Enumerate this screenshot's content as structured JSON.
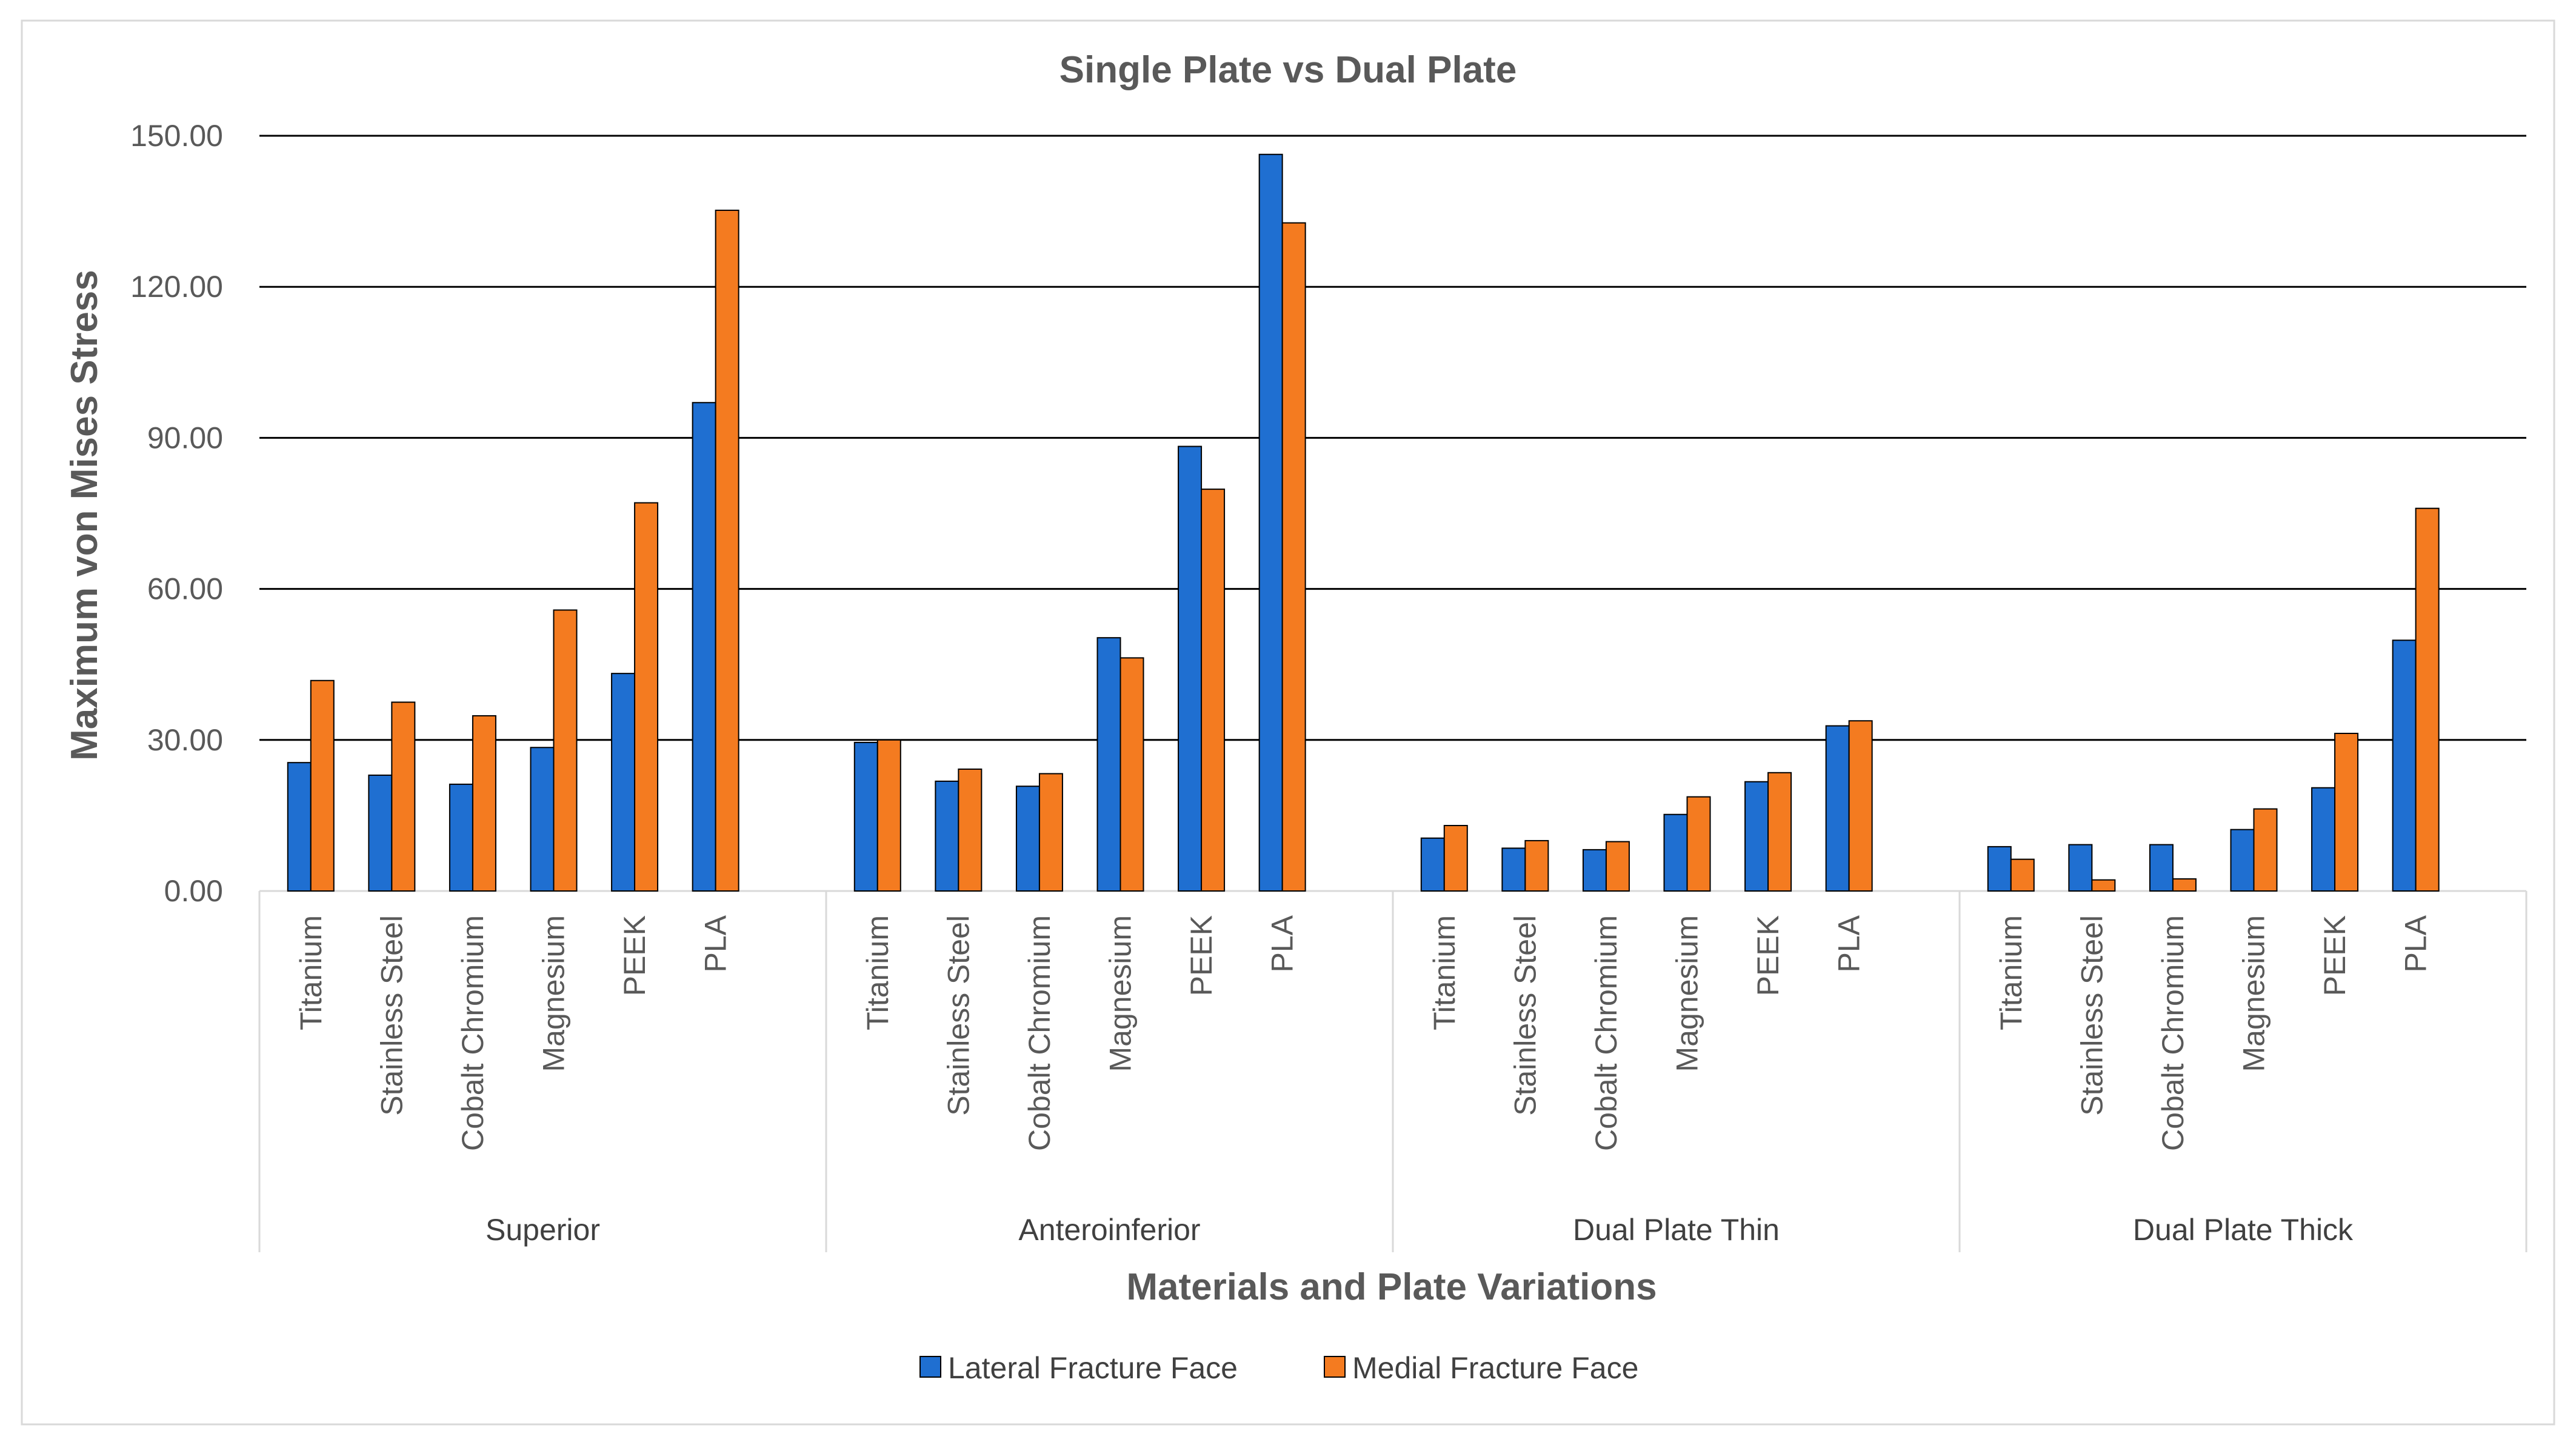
{
  "chart_data": {
    "type": "bar",
    "title": "Single Plate vs Dual Plate",
    "xlabel": "Materials and Plate Variations",
    "ylabel": "Maximum von Mises Stress",
    "ylim": [
      0,
      150
    ],
    "yticks": [
      "0.00",
      "30.00",
      "60.00",
      "90.00",
      "120.00",
      "150.00"
    ],
    "ytick_values": [
      0,
      30,
      60,
      90,
      120,
      150
    ],
    "grid": true,
    "legend_position": "bottom",
    "groups": [
      {
        "name": "Superior",
        "categories": [
          "Titanium",
          "Stainless Steel",
          "Cobalt Chromium",
          "Magnesium",
          "PEEK",
          "PLA"
        ]
      },
      {
        "name": "Anteroinferior",
        "categories": [
          "Titanium",
          "Stainless Steel",
          "Cobalt Chromium",
          "Magnesium",
          "PEEK",
          "PLA"
        ]
      },
      {
        "name": "Dual Plate Thin",
        "categories": [
          "Titanium",
          "Stainless Steel",
          "Cobalt Chromium",
          "Magnesium",
          "PEEK",
          "PLA"
        ]
      },
      {
        "name": "Dual Plate Thick",
        "categories": [
          "Titanium",
          "Stainless Steel",
          "Cobalt Chromium",
          "Magnesium",
          "PEEK",
          "PLA"
        ]
      }
    ],
    "series": [
      {
        "name": "Lateral Fracture Face",
        "color": "#1F6FD1",
        "values": [
          25.5,
          23.0,
          21.2,
          28.5,
          43.2,
          97.0,
          29.5,
          21.8,
          20.8,
          50.3,
          88.3,
          146.3,
          10.5,
          8.5,
          8.2,
          15.2,
          21.7,
          32.8,
          8.8,
          9.2,
          9.2,
          12.2,
          20.5,
          49.8
        ]
      },
      {
        "name": "Medial Fracture Face",
        "color": "#F47B20",
        "values": [
          41.8,
          37.5,
          34.8,
          55.8,
          77.1,
          135.2,
          30.0,
          24.2,
          23.3,
          46.3,
          79.8,
          132.7,
          13.0,
          10.0,
          9.8,
          18.7,
          23.5,
          33.8,
          6.3,
          2.2,
          2.4,
          16.3,
          31.3,
          76.0
        ]
      }
    ]
  }
}
